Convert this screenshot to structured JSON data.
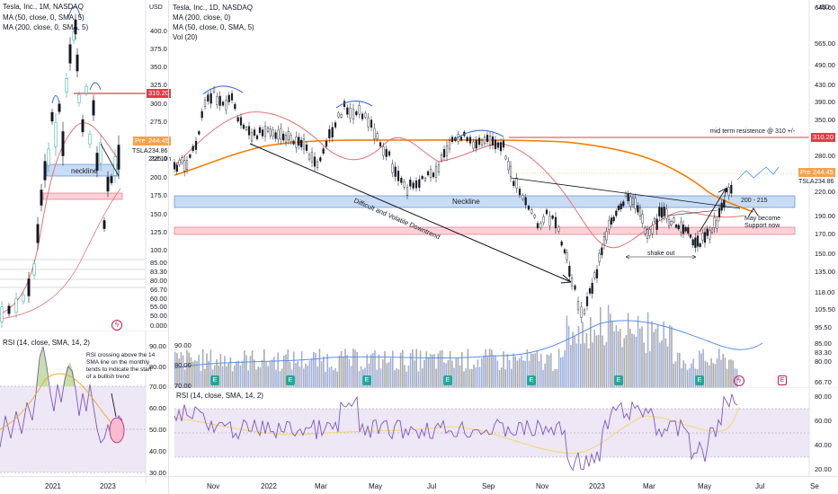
{
  "left_chart": {
    "legend": [
      "Tesla, Inc., 1M, NASDAQ",
      "MA (50, close, 0, SMA, 5)",
      "MA (200, close, 0, SMA, 5)"
    ],
    "currency": "USD",
    "price_ticks": [
      "400.00",
      "375.00",
      "350.00",
      "325.00",
      "300.00",
      "275.00",
      "250.00",
      "225.00",
      "200.00",
      "175.00",
      "150.00",
      "125.00",
      "100.00",
      "85.00",
      "83.30",
      "80.00",
      "66.70",
      "60.00",
      "55.00",
      "50.00",
      "0.0000"
    ],
    "tag_red": "310.20",
    "tag_pre": "Pre",
    "tag_pre_value": "244.45",
    "tsla_label": "TSLA",
    "tsla_value": "234.86",
    "countdown": "21d 10h",
    "neckline_label": "neckline",
    "rsi_legend": "RSI (14, close, SMA, 14, 2)",
    "rsi_ticks": [
      "90.00",
      "80.00",
      "70.00",
      "60.00",
      "50.00",
      "40.00",
      "30.00"
    ],
    "rsi_note": [
      "RSI crossing above the 14",
      "SMA line on the monthly",
      "tends to indicate the start",
      "of a bullish trend"
    ],
    "time_labels": [
      "2021",
      "2023"
    ]
  },
  "right_chart": {
    "legend": [
      "Tesla, Inc., 1D, NASDAQ",
      "MA (200, close, 0)",
      "MA (50, close, 0, SMA, 5)",
      "Vol (20)"
    ],
    "currency": "USD",
    "price_ticks": [
      "640.00",
      "565.00",
      "490.00",
      "430.00",
      "390.00",
      "350.00",
      "310.00",
      "280.00",
      "250.00",
      "220.00",
      "190.00",
      "170.00",
      "150.00",
      "135.00",
      "118.00",
      "105.50",
      "95.50"
    ],
    "tag_red": "310.20",
    "tag_pre": "Pre",
    "tag_pre_value": "244.45",
    "tsla_label": "TSLA",
    "tsla_value": "234.86",
    "vol_ticks": [
      "85.00",
      "83.30",
      "80.00",
      "66.70"
    ],
    "annotations": {
      "resistance": "mid term resistence @ 310 +/-",
      "neckline": "Neckline",
      "downtrend": "Difficult and Volatile Downtrend",
      "range": "200 - 215",
      "support": [
        "May become",
        "Support  now"
      ],
      "shakeout": "shake out"
    },
    "rsi_legend": "RSI (14, close, SMA, 14, 2)",
    "rsi_ticks": [
      "80.00",
      "60.00",
      "40.00",
      "20.00"
    ],
    "left_axis_ticks": [
      "90.00",
      "80.00",
      "70.00",
      "60.00",
      "50.00",
      "40.00",
      "30.00"
    ],
    "time_labels": [
      "Nov",
      "2022",
      "Mar",
      "May",
      "Jul",
      "Sep",
      "Nov",
      "2023",
      "Mar",
      "May",
      "Jul",
      "Se"
    ],
    "earnings_marker": "E"
  },
  "colors": {
    "red_line": "#e53946",
    "blue_band": "#c8dcf5",
    "pink_band": "#fbd2d8",
    "orange_ma": "#f57c00",
    "pink_ma": "#e57373",
    "rsi": "#7e57c2",
    "volume": "#90a4d8"
  }
}
